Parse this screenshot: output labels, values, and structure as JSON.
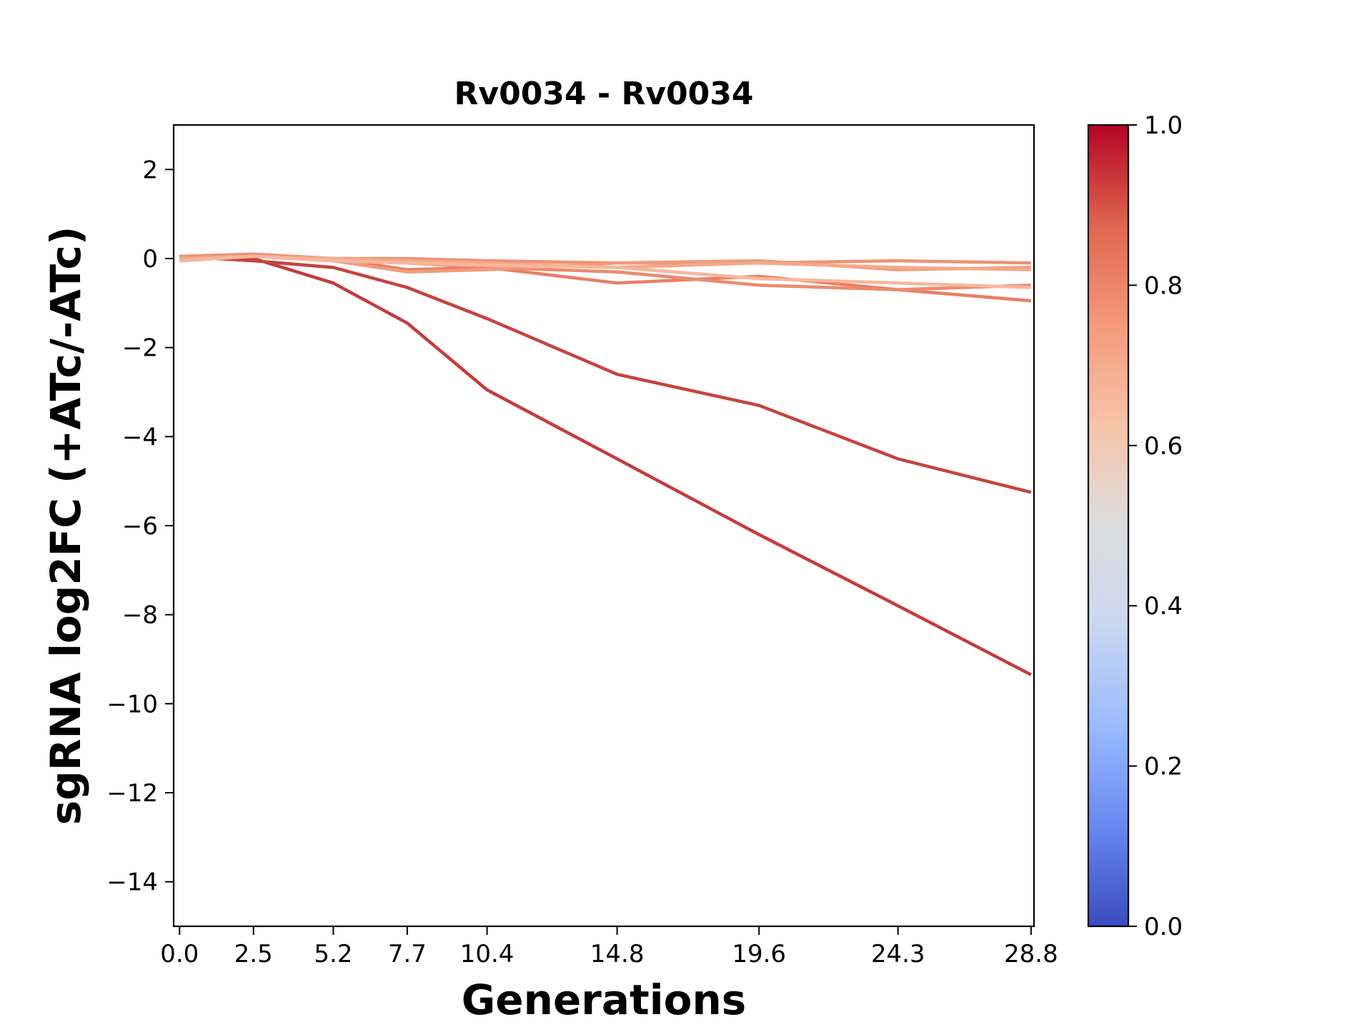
{
  "chart_data": {
    "type": "line",
    "title": "Rv0034 - Rv0034",
    "xlabel": "Generations",
    "ylabel": "sgRNA log2FC (+ATc/-ATc)",
    "x": [
      0.0,
      2.5,
      5.2,
      7.7,
      10.4,
      14.8,
      19.6,
      24.3,
      28.8
    ],
    "x_tick_labels": [
      "0.0",
      "2.5",
      "5.2",
      "7.7",
      "10.4",
      "14.8",
      "19.6",
      "24.3",
      "28.8"
    ],
    "xlim": [
      -0.2,
      28.9
    ],
    "ylim": [
      -15,
      3
    ],
    "y_ticks": [
      2,
      0,
      -2,
      -4,
      -6,
      -8,
      -10,
      -12,
      -14
    ],
    "y_tick_labels": [
      "2",
      "0",
      "−2",
      "−4",
      "−6",
      "−8",
      "−10",
      "−12",
      "−14"
    ],
    "grid": false,
    "legend": "none",
    "series": [
      {
        "color_value": 0.92,
        "color": "#c43c3c",
        "values": [
          0.05,
          0.0,
          -0.55,
          -1.45,
          -2.95,
          -4.5,
          -6.2,
          -7.8,
          -9.35
        ]
      },
      {
        "color_value": 0.9,
        "color": "#c6443d",
        "values": [
          0.05,
          -0.05,
          -0.2,
          -0.65,
          -1.35,
          -2.6,
          -3.3,
          -4.5,
          -5.25
        ]
      },
      {
        "color_value": 0.8,
        "color": "#e87f65",
        "values": [
          -0.05,
          0.05,
          0.0,
          -0.25,
          -0.2,
          -0.55,
          -0.4,
          -0.7,
          -0.95
        ]
      },
      {
        "color_value": 0.78,
        "color": "#ec8a6e",
        "values": [
          0.0,
          0.05,
          -0.05,
          -0.1,
          -0.2,
          -0.3,
          -0.6,
          -0.7,
          -0.6
        ]
      },
      {
        "color_value": 0.76,
        "color": "#ee9274",
        "values": [
          0.05,
          0.1,
          0.0,
          0.0,
          -0.05,
          -0.1,
          -0.1,
          -0.05,
          -0.1
        ]
      },
      {
        "color_value": 0.74,
        "color": "#f19a7c",
        "values": [
          0.0,
          0.05,
          -0.05,
          -0.3,
          -0.25,
          -0.1,
          -0.05,
          -0.25,
          -0.2
        ]
      },
      {
        "color_value": 0.7,
        "color": "#f4a98a",
        "values": [
          0.0,
          0.05,
          0.0,
          -0.05,
          -0.1,
          -0.2,
          -0.1,
          -0.2,
          -0.25
        ]
      },
      {
        "color_value": 0.66,
        "color": "#f6b79c",
        "values": [
          -0.05,
          0.05,
          -0.05,
          -0.1,
          -0.15,
          -0.2,
          -0.45,
          -0.55,
          -0.65
        ]
      }
    ],
    "colorbar": {
      "min": 0.0,
      "max": 1.0,
      "ticks": [
        0.0,
        0.2,
        0.4,
        0.6,
        0.8,
        1.0
      ],
      "tick_labels": [
        "0.0",
        "0.2",
        "0.4",
        "0.6",
        "0.8",
        "1.0"
      ],
      "colormap": "coolwarm",
      "stops": [
        "#3b4cc0",
        "#6788ee",
        "#9abbff",
        "#c9d7f0",
        "#dddddd",
        "#f7c4a9",
        "#f49a7b",
        "#e0654f",
        "#b40426"
      ]
    }
  }
}
